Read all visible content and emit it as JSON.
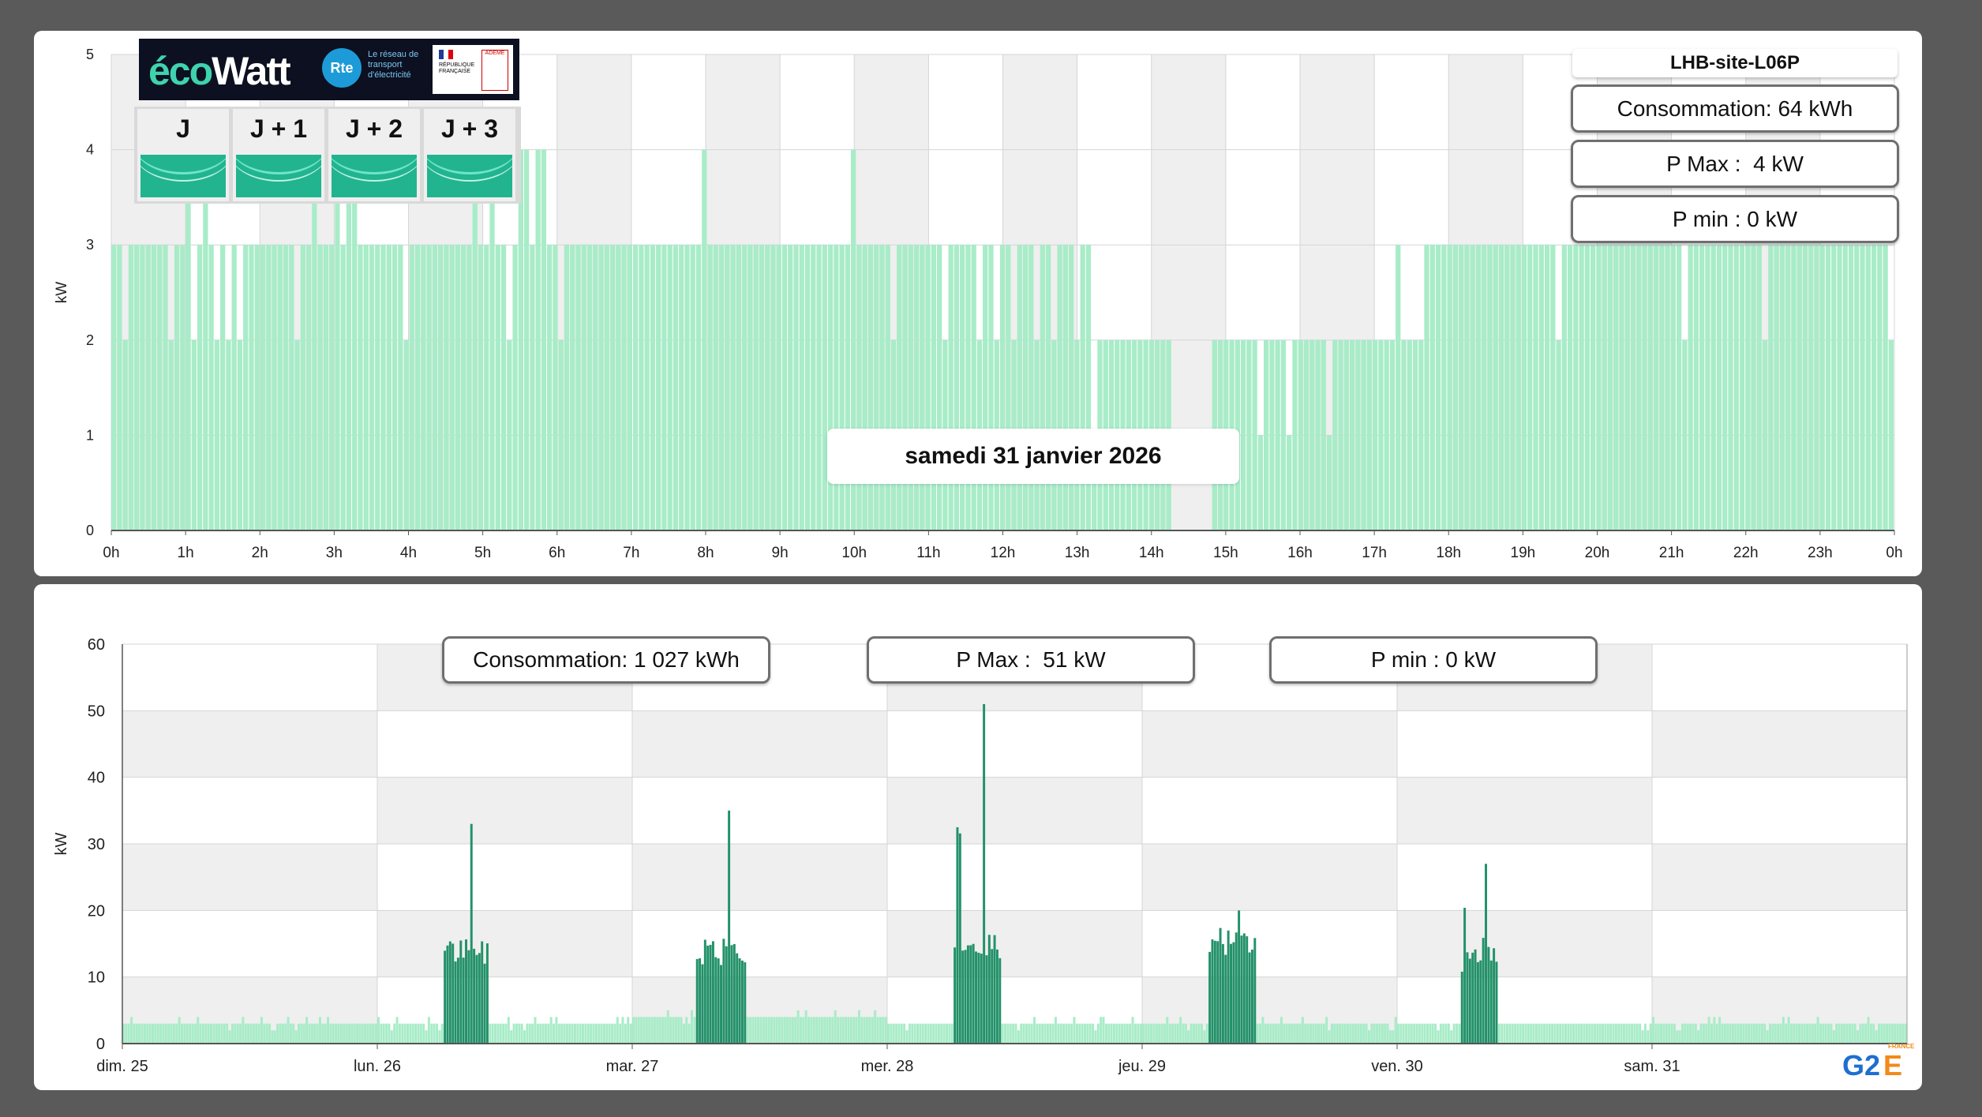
{
  "top_panel": {
    "site_name": "LHB-site-L06P",
    "consumption": "Consommation: 64 kWh",
    "p_max": "P Max :  4 kW",
    "p_min": "P min : 0 kW",
    "date": "samedi 31 janvier 2026"
  },
  "bottom_panel": {
    "consumption": "Consommation: 1 027 kWh",
    "p_max": "P Max :  51 kW",
    "p_min": "P min : 0 kW"
  },
  "ecowatt": {
    "brand_eco": "éco",
    "brand_watt": "Watt",
    "rte_logo": "Rte",
    "rte_caption": "Le réseau de transport d'électricité",
    "gov_caption": "RÉPUBLIQUE FRANÇAISE",
    "ademe": "ADEME",
    "days": [
      "J",
      "J + 1",
      "J + 2",
      "J + 3"
    ],
    "signal_color": "#21b48f"
  },
  "g2e_logo": {
    "g2": "G2",
    "e": "E",
    "country": "FRANCE"
  },
  "colors": {
    "light_bar": "#a8ecc8",
    "dark_bar": "#23916a",
    "grid_band": "#efefef",
    "panel_bg": "#5a5a5a"
  },
  "chart_data": [
    {
      "type": "bar",
      "title": "samedi 31 janvier 2026",
      "ylabel": "kW",
      "ylim": [
        0,
        5
      ],
      "y_ticks": [
        0,
        1,
        2,
        3,
        4,
        5
      ],
      "x_ticks": [
        "0h",
        "1h",
        "2h",
        "3h",
        "4h",
        "5h",
        "6h",
        "7h",
        "8h",
        "9h",
        "10h",
        "11h",
        "12h",
        "13h",
        "14h",
        "15h",
        "16h",
        "17h",
        "18h",
        "19h",
        "20h",
        "21h",
        "22h",
        "23h",
        "0h"
      ],
      "interval_minutes": 5,
      "grid": true,
      "series": [
        {
          "color": "#a8ecc8",
          "values": [
            3,
            3,
            2,
            3,
            3,
            3,
            3,
            3,
            3,
            3,
            2,
            3,
            3,
            4,
            2,
            3,
            4,
            3,
            2,
            3,
            2,
            3,
            2,
            3,
            3,
            3,
            3,
            3,
            3,
            3,
            3,
            3,
            2,
            3,
            3,
            4,
            3,
            3,
            3,
            4,
            3,
            4,
            4,
            3,
            3,
            3,
            3,
            3,
            3,
            3,
            3,
            2,
            3,
            3,
            3,
            3,
            3,
            3,
            3,
            3,
            3,
            3,
            3,
            4,
            3,
            3,
            4,
            3,
            3,
            2,
            3,
            4,
            4,
            3,
            4,
            4,
            3,
            3,
            2,
            3,
            3,
            3,
            3,
            3,
            3,
            3,
            3,
            3,
            3,
            3,
            3,
            3,
            3,
            3,
            3,
            3,
            3,
            3,
            3,
            3,
            3,
            3,
            3,
            4,
            3,
            3,
            3,
            3,
            3,
            3,
            3,
            3,
            3,
            3,
            3,
            3,
            3,
            3,
            3,
            3,
            3,
            3,
            3,
            3,
            3,
            3,
            3,
            3,
            3,
            4,
            3,
            3,
            3,
            3,
            3,
            3,
            2,
            3,
            3,
            3,
            3,
            3,
            3,
            3,
            3,
            2,
            3,
            3,
            3,
            3,
            3,
            2,
            3,
            3,
            2,
            3,
            3,
            2,
            3,
            3,
            3,
            2,
            3,
            3,
            2,
            3,
            3,
            3,
            2,
            3,
            3,
            1,
            2,
            2,
            2,
            2,
            2,
            2,
            2,
            2,
            2,
            2,
            2,
            2,
            2,
            0,
            0,
            0,
            0,
            0,
            0,
            0,
            2,
            2,
            2,
            2,
            2,
            2,
            2,
            2,
            1,
            2,
            2,
            2,
            2,
            1,
            2,
            2,
            2,
            2,
            2,
            2,
            1,
            2,
            2,
            2,
            2,
            2,
            2,
            2,
            2,
            2,
            2,
            2,
            3,
            2,
            2,
            2,
            2,
            3,
            3,
            3,
            3,
            3,
            3,
            3,
            3,
            3,
            3,
            3,
            3,
            3,
            3,
            3,
            3,
            3,
            3,
            3,
            3,
            3,
            3,
            3,
            2,
            3,
            3,
            3,
            3,
            3,
            3,
            3,
            3,
            3,
            3,
            3,
            3,
            3,
            3,
            3,
            3,
            3,
            3,
            3,
            3,
            3,
            2,
            3,
            3,
            3,
            3,
            3,
            3,
            3,
            3,
            3,
            3,
            3,
            3,
            3,
            2,
            3,
            3,
            3,
            3,
            3,
            3,
            3,
            3,
            3,
            3,
            3,
            3,
            3,
            3,
            3,
            3,
            3,
            3,
            3,
            3,
            3,
            2
          ]
        }
      ]
    },
    {
      "type": "bar",
      "ylabel": "kW",
      "ylim": [
        0,
        60
      ],
      "y_ticks": [
        0,
        10,
        20,
        30,
        40,
        50,
        60
      ],
      "x_ticks": [
        "dim. 25",
        "lun. 26",
        "mar. 27",
        "mer. 28",
        "jeu. 29",
        "ven. 30",
        "sam. 31"
      ],
      "grid": true,
      "days": [
        {
          "label": "dim. 25",
          "base_kw": 3,
          "peak_kw": null,
          "active_window_h": null
        },
        {
          "label": "lun. 26",
          "base_kw": 3,
          "peak_kw": 33,
          "active_window_h": [
            6.1,
            10.4
          ],
          "plateau_kw": 13
        },
        {
          "label": "mar. 27",
          "base_kw": 4,
          "peak_kw": 35,
          "active_window_h": [
            6.0,
            10.6
          ],
          "plateau_kw": 13
        },
        {
          "label": "mer. 28",
          "base_kw": 3,
          "peak_kw": 51,
          "active_window_h": [
            6.1,
            10.6
          ],
          "plateau_kw": 14
        },
        {
          "label": "jeu. 29",
          "base_kw": 3,
          "peak_kw": 20,
          "active_window_h": [
            6.1,
            10.6
          ],
          "plateau_kw": 14
        },
        {
          "label": "ven. 30",
          "base_kw": 3,
          "peak_kw": 27,
          "active_window_h": [
            6.0,
            9.4
          ],
          "plateau_kw": 12
        },
        {
          "label": "sam. 31",
          "base_kw": 3,
          "peak_kw": 4,
          "active_window_h": null
        }
      ],
      "series": [
        {
          "color": "#a8ecc8",
          "role": "base"
        },
        {
          "color": "#23916a",
          "role": "active"
        }
      ]
    }
  ]
}
